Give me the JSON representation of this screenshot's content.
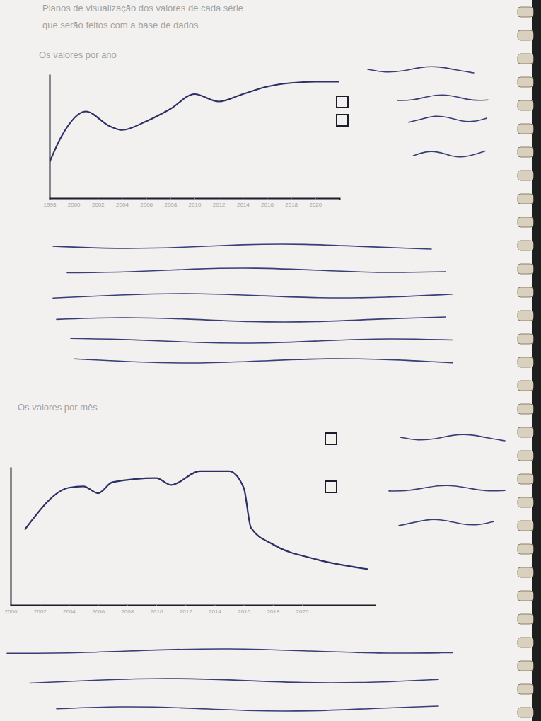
{
  "page": {
    "heading": [
      "Planos de visualização dos valores de cada série",
      "que serão feitos com a base de dados"
    ]
  },
  "chart_data": [
    {
      "type": "line",
      "title": "Os valores por ano",
      "color": "#2e2f66",
      "x": [
        1998,
        1999,
        2001,
        2003,
        2004,
        2006,
        2008,
        2010,
        2012,
        2014,
        2016,
        2018,
        2020,
        2022
      ],
      "values": [
        29,
        50,
        70,
        58,
        55,
        62,
        72,
        84,
        78,
        84,
        90,
        93,
        94,
        94
      ],
      "xlim": [
        1998,
        2022
      ],
      "xticks": [
        1998,
        2000,
        2002,
        2004,
        2006,
        2008,
        2010,
        2012,
        2014,
        2016,
        2018,
        2020
      ],
      "ylim": [
        0,
        100
      ],
      "tick_labels": "x"
    },
    {
      "type": "line",
      "title": "Os valores por mês",
      "color": "#2e2f66",
      "x": [
        2001,
        2004,
        2005,
        2006,
        2007,
        2010,
        2011,
        2013,
        2015,
        2016,
        2016.5,
        2018,
        2021,
        2024.5
      ],
      "values": [
        55,
        85,
        86,
        81,
        89,
        92,
        87,
        97,
        97,
        85,
        56,
        44,
        33,
        26
      ],
      "xlim": [
        2000,
        2025
      ],
      "xticks": [
        2000,
        2002,
        2004,
        2006,
        2008,
        2010,
        2012,
        2014,
        2016,
        2018,
        2020
      ],
      "ylim": [
        0,
        100
      ],
      "tick_labels": "x"
    }
  ]
}
